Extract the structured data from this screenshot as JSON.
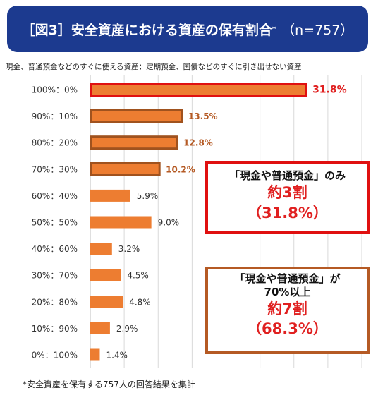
{
  "title": {
    "main": "［図3］安全資産における資産の保有割合",
    "mark": "*",
    "n": "（n=757）"
  },
  "subtitle": "現金、普通預金などのすぐに使える資産：定期預金、国債などのすぐに引き出せない資産",
  "chart_data": {
    "type": "bar",
    "orientation": "horizontal",
    "categories": [
      "100%：0%",
      "90%：10%",
      "80%：20%",
      "70%：30%",
      "60%：40%",
      "50%：50%",
      "40%：60%",
      "30%：70%",
      "20%：80%",
      "10%：90%",
      "0%：100%"
    ],
    "values": [
      31.8,
      13.5,
      12.8,
      10.2,
      5.9,
      9.0,
      3.2,
      4.5,
      4.8,
      2.9,
      1.4
    ],
    "value_labels": [
      "31.8%",
      "13.5%",
      "12.8%",
      "10.2%",
      "5.9%",
      "9.0%",
      "3.2%",
      "4.5%",
      "4.8%",
      "2.9%",
      "1.4%"
    ],
    "highlight": [
      "red",
      "brown",
      "brown",
      "brown",
      "none",
      "none",
      "none",
      "none",
      "none",
      "none",
      "none"
    ],
    "xlim": [
      0,
      40
    ],
    "grid": true,
    "colors": {
      "bar": "#ed7d31",
      "highlight_red": "#e01010",
      "highlight_brown": "#a0521e",
      "label_red": "#e02020",
      "label_brown": "#b55a24",
      "grid": "#d9d9d9"
    }
  },
  "callouts": {
    "red": {
      "line1": "「現金や普通預金」のみ",
      "line2": "約3割",
      "line3": "（31.8%）"
    },
    "brown": {
      "line1": "「現金や普通預金」が",
      "line2": "70%以上",
      "line3": "約7割",
      "line4": "（68.3%）"
    }
  },
  "footnote": "*安全資産を保有する757人の回答結果を集計"
}
